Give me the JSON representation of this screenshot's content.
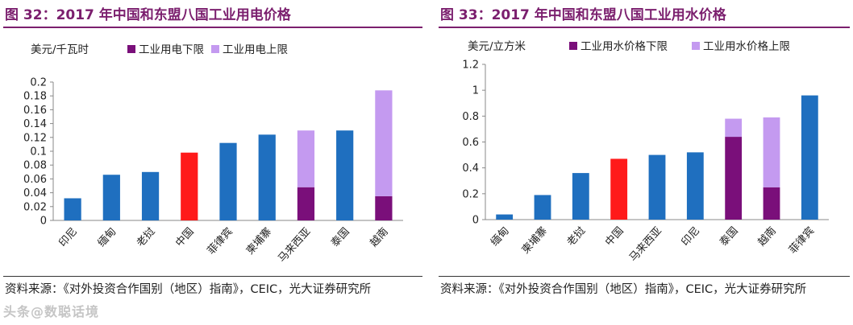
{
  "colors": {
    "title": "#7b1f6e",
    "blue": "#1f6fbf",
    "red": "#ff1a1a",
    "lower": "#7a0f7a",
    "upper": "#c49af0"
  },
  "watermark": "头条@数聪话境",
  "left": {
    "title": "图 32：2017 年中国和东盟八国工业用电价格",
    "source": "资料来源：《对外投资合作国别（地区）指南》，CEIC，光大证券研究所"
  },
  "right": {
    "title": "图 33：2017 年中国和东盟八国工业用水价格",
    "source": "资料来源：《对外投资合作国别（地区）指南》，CEIC，光大证券研究所"
  },
  "chart_data": [
    {
      "type": "bar",
      "stacked": true,
      "unit_label": "美元/千瓦时",
      "categories": [
        "印尼",
        "缅甸",
        "老挝",
        "中国",
        "菲律宾",
        "柬埔寨",
        "马来西亚",
        "泰国",
        "越南"
      ],
      "series": [
        {
          "name": "工业用电下限",
          "values": [
            0.032,
            0.066,
            0.07,
            0.098,
            0.112,
            0.124,
            0.048,
            0.13,
            0.035
          ]
        },
        {
          "name": "工业用电上限",
          "values": [
            0,
            0,
            0,
            0,
            0,
            0,
            0.082,
            0,
            0.153
          ]
        }
      ],
      "legend": [
        "工业用电下限",
        "工业用电上限"
      ],
      "bar_colors": [
        "blue",
        "blue",
        "blue",
        "red",
        "blue",
        "blue",
        "stacked",
        "blue",
        "stacked"
      ],
      "ylim": [
        0,
        0.2
      ],
      "yticks": [
        0,
        0.02,
        0.04,
        0.06,
        0.08,
        0.1,
        0.12,
        0.14,
        0.16,
        0.18,
        0.2
      ],
      "ytick_labels": [
        "0",
        "0.02",
        "0.04",
        "0.06",
        "0.08",
        "0.1",
        "0.12",
        "0.14",
        "0.16",
        "0.18",
        "0.2"
      ]
    },
    {
      "type": "bar",
      "stacked": true,
      "unit_label": "美元/立方米",
      "categories": [
        "缅甸",
        "柬埔寨",
        "老挝",
        "中国",
        "马来西亚",
        "印尼",
        "泰国",
        "越南",
        "菲律宾"
      ],
      "series": [
        {
          "name": "工业用水价格下限",
          "values": [
            0.04,
            0.19,
            0.36,
            0.47,
            0.5,
            0.52,
            0.64,
            0.25,
            0.96
          ]
        },
        {
          "name": "工业用水价格上限",
          "values": [
            0,
            0,
            0,
            0,
            0,
            0,
            0.14,
            0.54,
            0
          ]
        }
      ],
      "legend": [
        "工业用水价格下限",
        "工业用水价格上限"
      ],
      "bar_colors": [
        "blue",
        "blue",
        "blue",
        "red",
        "blue",
        "blue",
        "stacked",
        "stacked",
        "blue"
      ],
      "ylim": [
        0,
        1.2
      ],
      "yticks": [
        0,
        0.2,
        0.4,
        0.6,
        0.8,
        1,
        1.2
      ],
      "ytick_labels": [
        "0",
        "0.2",
        "0.4",
        "0.6",
        "0.8",
        "1",
        "1.2"
      ]
    }
  ]
}
